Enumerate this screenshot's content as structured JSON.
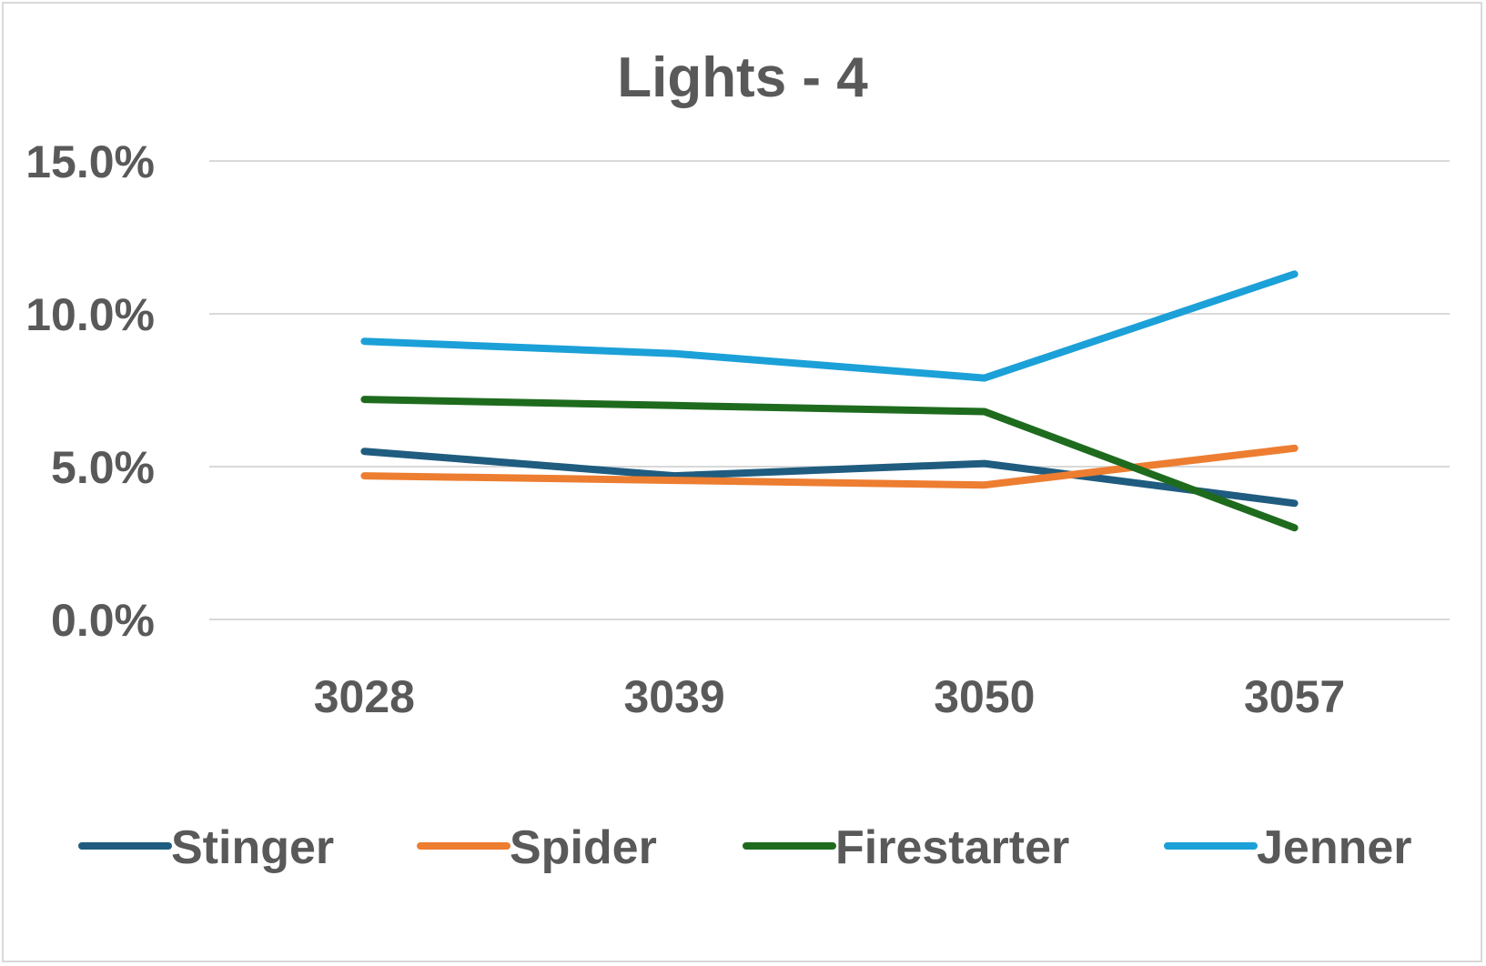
{
  "chart_data": {
    "type": "line",
    "title": "Lights - 4",
    "xlabel": "",
    "ylabel": "",
    "categories": [
      "3028",
      "3039",
      "3050",
      "3057"
    ],
    "ylim": [
      0,
      0.15
    ],
    "yticks": [
      {
        "value": 0.0,
        "label": "0.0%"
      },
      {
        "value": 0.05,
        "label": "5.0%"
      },
      {
        "value": 0.1,
        "label": "10.0%"
      },
      {
        "value": 0.15,
        "label": "15.0%"
      }
    ],
    "grid": true,
    "legend_position": "bottom",
    "series": [
      {
        "name": "Stinger",
        "color": "#1f5c7f",
        "values": [
          0.055,
          0.047,
          0.051,
          0.038
        ]
      },
      {
        "name": "Spider",
        "color": "#ed7d31",
        "values": [
          0.047,
          0.0455,
          0.044,
          0.056
        ]
      },
      {
        "name": "Firestarter",
        "color": "#1e6b1e",
        "values": [
          0.072,
          0.07,
          0.068,
          0.03
        ]
      },
      {
        "name": "Jenner",
        "color": "#1ca0d8",
        "values": [
          0.091,
          0.087,
          0.079,
          0.113
        ]
      }
    ]
  }
}
